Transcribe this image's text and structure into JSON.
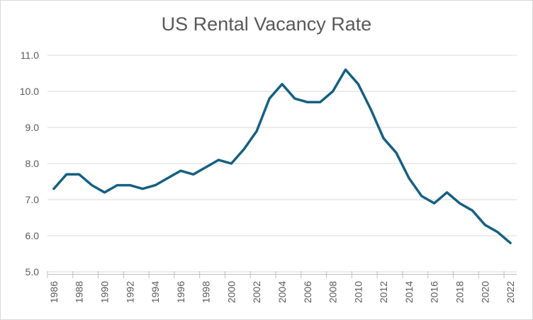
{
  "window": {
    "background": "#FFFFFF",
    "border_color": "#D9D9D9"
  },
  "chart_data": {
    "type": "line",
    "title": "US Rental Vacancy Rate",
    "xlabel": "",
    "ylabel": "",
    "legend": "none",
    "grid": "horizontal",
    "ylim": [
      5.0,
      11.0
    ],
    "y_ticks": [
      5.0,
      6.0,
      7.0,
      8.0,
      9.0,
      10.0,
      11.0
    ],
    "y_tick_labels": [
      "5.0",
      "6.0",
      "7.0",
      "8.0",
      "9.0",
      "10.0",
      "11.0"
    ],
    "x_tick_labels": [
      "1986",
      "1988",
      "1990",
      "1992",
      "1994",
      "1996",
      "1998",
      "2000",
      "2002",
      "2004",
      "2006",
      "2008",
      "2010",
      "2012",
      "2014",
      "2016",
      "2018",
      "2020",
      "2022"
    ],
    "x": [
      1986,
      1987,
      1988,
      1989,
      1990,
      1991,
      1992,
      1993,
      1994,
      1995,
      1996,
      1997,
      1998,
      1999,
      2000,
      2001,
      2002,
      2003,
      2004,
      2005,
      2006,
      2007,
      2008,
      2009,
      2010,
      2011,
      2012,
      2013,
      2014,
      2015,
      2016,
      2017,
      2018,
      2019,
      2020,
      2021,
      2022
    ],
    "values": [
      7.3,
      7.7,
      7.7,
      7.4,
      7.2,
      7.4,
      7.4,
      7.3,
      7.4,
      7.6,
      7.8,
      7.7,
      7.9,
      8.1,
      8.0,
      8.4,
      8.9,
      9.8,
      10.2,
      9.8,
      9.7,
      9.7,
      10.0,
      10.6,
      10.2,
      9.5,
      8.7,
      8.3,
      7.6,
      7.1,
      6.9,
      7.2,
      6.9,
      6.7,
      6.3,
      6.1,
      5.8
    ],
    "colors": {
      "line": "#156082",
      "gridline": "#D9D9D9",
      "axis": "#BFBFBF",
      "tick": "#BFBFBF",
      "labels": "#595959",
      "title": "#595959"
    }
  }
}
